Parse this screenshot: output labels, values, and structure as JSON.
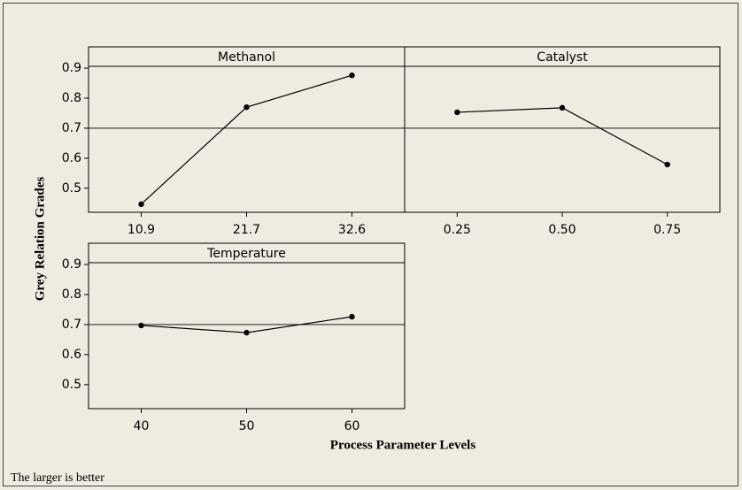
{
  "chart_data": [
    {
      "type": "line",
      "title": "Methanol",
      "categories": [
        "10.9",
        "21.7",
        "32.6"
      ],
      "values": [
        0.447,
        0.77,
        0.876
      ],
      "color": "#000000",
      "ylim": [
        0.42,
        0.906
      ],
      "yticks": [
        0.5,
        0.6,
        0.7,
        0.8,
        0.9
      ],
      "reference_line": 0.7
    },
    {
      "type": "line",
      "title": "Catalyst",
      "categories": [
        "0.25",
        "0.50",
        "0.75"
      ],
      "values": [
        0.753,
        0.768,
        0.579
      ],
      "color": "#000000",
      "ylim": [
        0.42,
        0.906
      ],
      "reference_line": 0.7
    },
    {
      "type": "line",
      "title": "Temperature",
      "categories": [
        "40",
        "50",
        "60"
      ],
      "values": [
        0.697,
        0.673,
        0.726
      ],
      "color": "#000000",
      "ylim": [
        0.42,
        0.906
      ],
      "yticks": [
        0.5,
        0.6,
        0.7,
        0.8,
        0.9
      ],
      "reference_line": 0.7
    }
  ],
  "y_label": "Grey Relation Grades",
  "x_label": "Process Parameter Levels",
  "footnote": "The larger is better"
}
